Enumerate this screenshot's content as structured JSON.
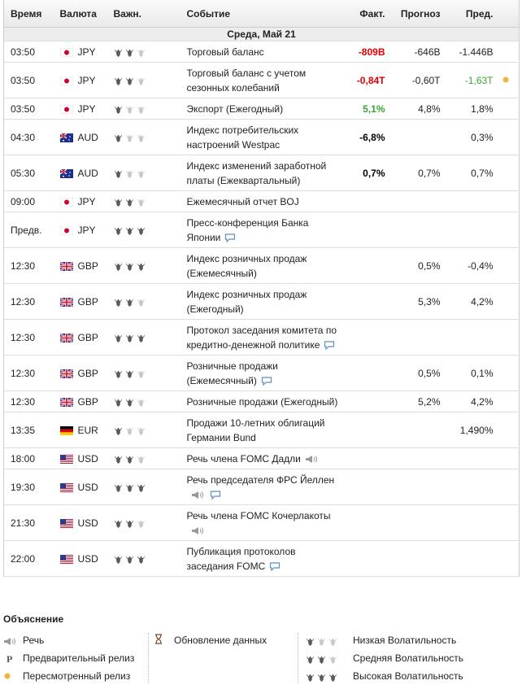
{
  "header": {
    "columns": [
      "Время",
      "Валюта",
      "Важн.",
      "Событие",
      "Факт.",
      "Прогноз",
      "Пред."
    ]
  },
  "date": "Среда, Май 21",
  "rows": [
    {
      "time": "03:50",
      "currency": "JPY",
      "importance": 2,
      "event": "Торговый баланс",
      "actual": "-809B",
      "actual_color": "#e00000",
      "forecast": "-646B",
      "previous": "-1.446B"
    },
    {
      "time": "03:50",
      "currency": "JPY",
      "importance": 2,
      "event": "Торговый баланс с учетом сезонных колебаний",
      "actual": "-0,84T",
      "actual_color": "#e00000",
      "forecast": "-0,60T",
      "previous": "-1,63T",
      "previous_color": "#3aa52f",
      "marker": "revised"
    },
    {
      "time": "03:50",
      "currency": "JPY",
      "importance": 1,
      "event": "Экспорт (Ежегодный)",
      "actual": "5,1%",
      "actual_color": "#3aa52f",
      "forecast": "4,8%",
      "previous": "1,8%"
    },
    {
      "time": "04:30",
      "currency": "AUD",
      "importance": 1,
      "event": "Индекс потребительских настроений Westpac",
      "actual": "-6,8%",
      "actual_color": "#000000",
      "previous": "0,3%"
    },
    {
      "time": "05:30",
      "currency": "AUD",
      "importance": 1,
      "event": "Индекс изменений заработной платы (Ежеквартальный)",
      "actual": "0,7%",
      "actual_color": "#000000",
      "forecast": "0,7%",
      "previous": "0,7%"
    },
    {
      "time": "09:00",
      "currency": "JPY",
      "importance": 2,
      "event": "Ежемесячный отчет BOJ"
    },
    {
      "time": "Предв.",
      "currency": "JPY",
      "importance": 3,
      "event": "Пресс-конференция Банка Японии",
      "icons": [
        "comment"
      ]
    },
    {
      "time": "12:30",
      "currency": "GBP",
      "importance": 3,
      "event": "Индекс розничных продаж (Ежемесячный)",
      "forecast": "0,5%",
      "previous": "-0,4%"
    },
    {
      "time": "12:30",
      "currency": "GBP",
      "importance": 2,
      "event": "Индекс розничных продаж (Ежегодный)",
      "forecast": "5,3%",
      "previous": "4,2%"
    },
    {
      "time": "12:30",
      "currency": "GBP",
      "importance": 3,
      "event": "Протокол заседания комитета по кредитно-денежной политике",
      "icons": [
        "comment"
      ]
    },
    {
      "time": "12:30",
      "currency": "GBP",
      "importance": 2,
      "event": "Розничные продажи (Ежемесячный)",
      "icons": [
        "comment"
      ],
      "forecast": "0,5%",
      "previous": "0,1%"
    },
    {
      "time": "12:30",
      "currency": "GBP",
      "importance": 2,
      "event": "Розничные продажи (Ежегодный)",
      "forecast": "5,2%",
      "previous": "4,2%"
    },
    {
      "time": "13:35",
      "currency": "EUR",
      "importance": 1,
      "event": "Продажи 10-летних облигаций Германии Bund",
      "previous": "1,490%"
    },
    {
      "time": "18:00",
      "currency": "USD",
      "importance": 2,
      "event": "Речь члена FOMC Дадли",
      "icons": [
        "speech"
      ]
    },
    {
      "time": "19:30",
      "currency": "USD",
      "importance": 3,
      "event": "Речь председателя ФРС Йеллен",
      "icons": [
        "speech",
        "comment"
      ]
    },
    {
      "time": "21:30",
      "currency": "USD",
      "importance": 2,
      "event": "Речь члена FOMC Кочерлакоты",
      "icons": [
        "speech"
      ]
    },
    {
      "time": "22:00",
      "currency": "USD",
      "importance": 3,
      "event": "Публикация протоколов заседания FOMC",
      "icons": [
        "comment"
      ]
    }
  ],
  "legend": {
    "title": "Объяснение",
    "items": [
      {
        "label": "Речь",
        "icon": "speech",
        "column": 0
      },
      {
        "label": "Предварительный релиз",
        "symbol": "P",
        "column": 0
      },
      {
        "label": "Пересмотренный релиз",
        "icon": "revised",
        "column": 0
      },
      {
        "label": "Обновление данных",
        "icon": "hourglass",
        "column": 1
      },
      {
        "label": "Низкая Волатильность",
        "importance": 1,
        "column": 2
      },
      {
        "label": "Средняя Волатильность",
        "importance": 2,
        "column": 2
      },
      {
        "label": "Высокая Волатильность",
        "importance": 3,
        "column": 2
      }
    ]
  }
}
